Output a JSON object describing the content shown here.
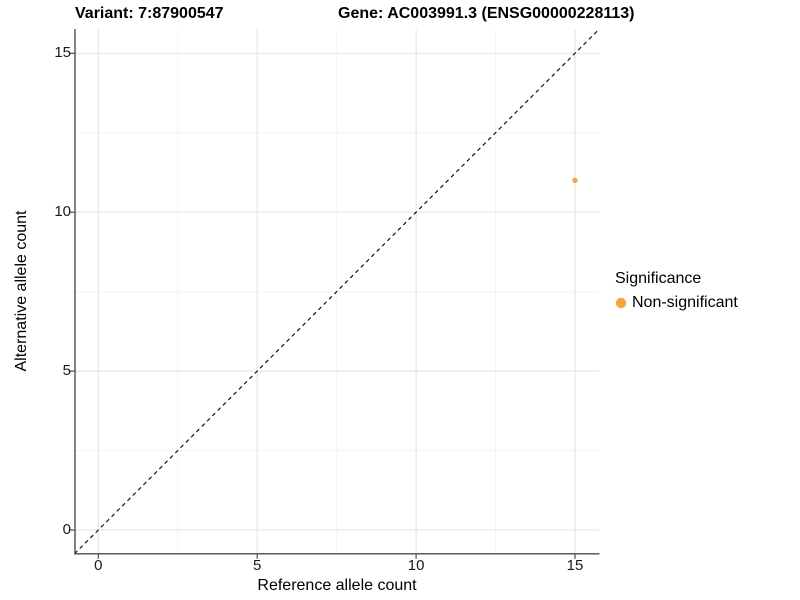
{
  "chart_data": {
    "type": "scatter",
    "titles": [
      "Variant: 7:87900547",
      "Gene: AC003991.3 (ENSG00000228113)"
    ],
    "xlabel": "Reference allele count",
    "ylabel": "Alternative allele count",
    "xlim": [
      -0.75,
      15.75
    ],
    "ylim": [
      -0.75,
      15.75
    ],
    "x_ticks": [
      0,
      5,
      10,
      15
    ],
    "y_ticks": [
      0,
      5,
      10,
      15
    ],
    "x_tick_labels": [
      "0",
      "5",
      "10",
      "15"
    ],
    "y_tick_labels": [
      "0",
      "5",
      "10",
      "15"
    ],
    "minor_gridlines": [
      2.5,
      7.5,
      12.5
    ],
    "grid": "major and minor, light gray on white",
    "legend": {
      "position": "right",
      "title": "Significance",
      "entries": [
        {
          "label": "Non-significant",
          "color": "#F9A242"
        }
      ]
    },
    "series": [
      {
        "name": "Non-significant",
        "color": "#F9A242",
        "points": [
          {
            "x": 15,
            "y": 11
          }
        ]
      }
    ],
    "reference_line": {
      "type": "identity",
      "equation": "y = x",
      "style": "dashed",
      "color": "#000000"
    }
  },
  "colors": {
    "point": "#F9A242",
    "axis_line": "#4d4d4d",
    "grid_major": "#E7E7E7",
    "grid_minor": "#F3F3F3",
    "background": "#FFFFFF"
  }
}
